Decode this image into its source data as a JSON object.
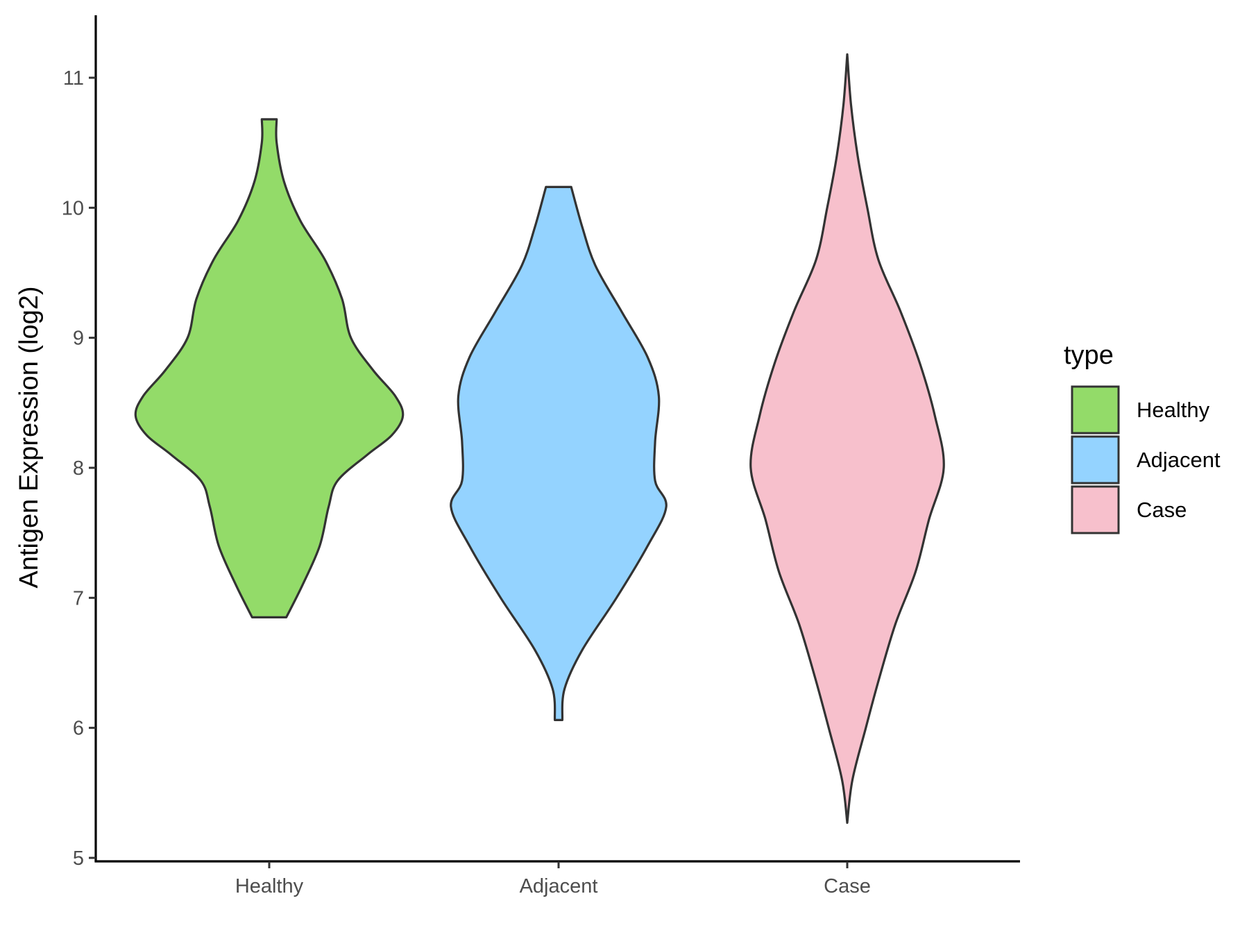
{
  "chart_data": {
    "type": "violin",
    "title": "",
    "xlabel": "",
    "ylabel": "Antigen Expression (log2)",
    "ylim": [
      4.98,
      11.48
    ],
    "yticks": [
      5,
      6,
      7,
      8,
      9,
      10,
      11
    ],
    "categories": [
      "Healthy",
      "Adjacent",
      "Case"
    ],
    "grid": false,
    "legend": {
      "title": "type",
      "position": "right"
    },
    "series": [
      {
        "name": "Healthy",
        "color": "#93db69",
        "min": 6.85,
        "max": 10.68,
        "profile": [
          [
            6.85,
            0.23
          ],
          [
            7.1,
            0.45
          ],
          [
            7.4,
            0.68
          ],
          [
            7.7,
            0.8
          ],
          [
            7.9,
            0.92
          ],
          [
            8.1,
            1.32
          ],
          [
            8.25,
            1.65
          ],
          [
            8.4,
            1.8
          ],
          [
            8.55,
            1.7
          ],
          [
            8.75,
            1.4
          ],
          [
            9.0,
            1.1
          ],
          [
            9.3,
            0.98
          ],
          [
            9.6,
            0.75
          ],
          [
            9.9,
            0.42
          ],
          [
            10.2,
            0.2
          ],
          [
            10.5,
            0.1
          ],
          [
            10.68,
            0.1
          ]
        ]
      },
      {
        "name": "Adjacent",
        "color": "#94d3ff",
        "min": 6.06,
        "max": 10.16,
        "profile": [
          [
            6.06,
            0.05
          ],
          [
            6.3,
            0.08
          ],
          [
            6.6,
            0.32
          ],
          [
            7.0,
            0.78
          ],
          [
            7.4,
            1.2
          ],
          [
            7.7,
            1.45
          ],
          [
            7.9,
            1.3
          ],
          [
            8.2,
            1.3
          ],
          [
            8.55,
            1.35
          ],
          [
            8.85,
            1.2
          ],
          [
            9.2,
            0.85
          ],
          [
            9.55,
            0.5
          ],
          [
            9.85,
            0.32
          ],
          [
            10.16,
            0.17
          ]
        ]
      },
      {
        "name": "Case",
        "color": "#f7c0cc",
        "min": 5.27,
        "max": 11.18,
        "profile": [
          [
            5.27,
            0.0
          ],
          [
            5.6,
            0.07
          ],
          [
            6.0,
            0.25
          ],
          [
            6.4,
            0.44
          ],
          [
            6.8,
            0.65
          ],
          [
            7.2,
            0.92
          ],
          [
            7.6,
            1.1
          ],
          [
            8.0,
            1.3
          ],
          [
            8.4,
            1.18
          ],
          [
            8.8,
            0.98
          ],
          [
            9.2,
            0.72
          ],
          [
            9.6,
            0.42
          ],
          [
            10.0,
            0.27
          ],
          [
            10.4,
            0.14
          ],
          [
            10.8,
            0.05
          ],
          [
            11.18,
            0.0
          ]
        ]
      }
    ]
  }
}
